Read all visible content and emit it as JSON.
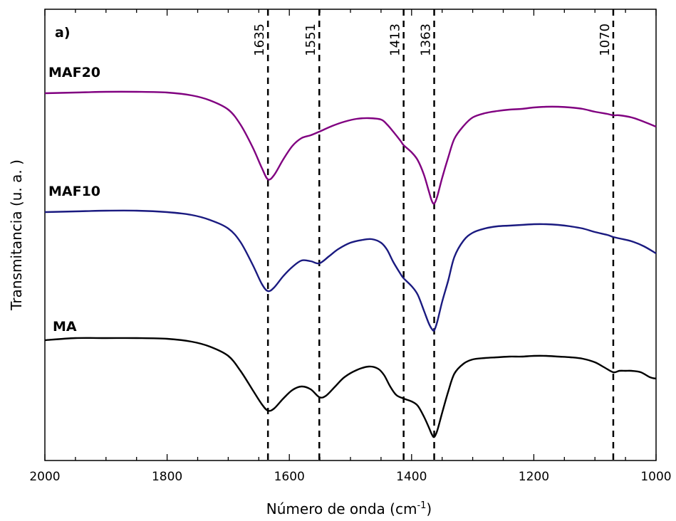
{
  "chart_data": {
    "type": "line",
    "panel_label": "a)",
    "xlabel_main": "Número de onda (cm",
    "xlabel_sup": "-1",
    "xlabel_close": ")",
    "ylabel": "Transmitancia (u. a. )",
    "xlim": [
      2000,
      1000
    ],
    "x_reversed": true,
    "y_ticks_visible": false,
    "x_ticks": [
      2000,
      1800,
      1600,
      1400,
      1200,
      1000
    ],
    "x_tick_labels": [
      "2000",
      "1800",
      "1600",
      "1400",
      "1200",
      "1000"
    ],
    "grid": false,
    "legend": "none (series labeled inline)",
    "peak_markers": [
      {
        "x": 1635,
        "label": "1635"
      },
      {
        "x": 1551,
        "label": "1551"
      },
      {
        "x": 1413,
        "label": "1413"
      },
      {
        "x": 1363,
        "label": "1363"
      },
      {
        "x": 1070,
        "label": "1070"
      }
    ],
    "series": [
      {
        "name": "MAF20",
        "color": "#800080",
        "points": [
          [
            2000,
            131
          ],
          [
            1950,
            130
          ],
          [
            1900,
            129
          ],
          [
            1850,
            129
          ],
          [
            1800,
            130
          ],
          [
            1760,
            134
          ],
          [
            1730,
            141
          ],
          [
            1700,
            154
          ],
          [
            1680,
            175
          ],
          [
            1660,
            207
          ],
          [
            1645,
            236
          ],
          [
            1635,
            252
          ],
          [
            1625,
            246
          ],
          [
            1610,
            224
          ],
          [
            1595,
            205
          ],
          [
            1580,
            194
          ],
          [
            1565,
            190
          ],
          [
            1551,
            185
          ],
          [
            1530,
            177
          ],
          [
            1510,
            171
          ],
          [
            1490,
            167
          ],
          [
            1470,
            166
          ],
          [
            1450,
            168
          ],
          [
            1440,
            175
          ],
          [
            1430,
            185
          ],
          [
            1418,
            198
          ],
          [
            1413,
            204
          ],
          [
            1400,
            214
          ],
          [
            1390,
            225
          ],
          [
            1380,
            245
          ],
          [
            1372,
            268
          ],
          [
            1367,
            282
          ],
          [
            1363,
            286
          ],
          [
            1358,
            276
          ],
          [
            1350,
            250
          ],
          [
            1340,
            221
          ],
          [
            1330,
            195
          ],
          [
            1315,
            177
          ],
          [
            1300,
            165
          ],
          [
            1280,
            159
          ],
          [
            1260,
            156
          ],
          [
            1240,
            154
          ],
          [
            1220,
            153
          ],
          [
            1200,
            151
          ],
          [
            1180,
            150
          ],
          [
            1160,
            150
          ],
          [
            1140,
            151
          ],
          [
            1120,
            153
          ],
          [
            1100,
            157
          ],
          [
            1080,
            160
          ],
          [
            1070,
            162
          ],
          [
            1060,
            162
          ],
          [
            1040,
            165
          ],
          [
            1020,
            171
          ],
          [
            1000,
            178
          ]
        ]
      },
      {
        "name": "MAF10",
        "color": "#1a1a80",
        "points": [
          [
            2000,
            298
          ],
          [
            1950,
            297
          ],
          [
            1900,
            296
          ],
          [
            1850,
            296
          ],
          [
            1800,
            298
          ],
          [
            1760,
            302
          ],
          [
            1730,
            309
          ],
          [
            1700,
            321
          ],
          [
            1680,
            340
          ],
          [
            1660,
            372
          ],
          [
            1645,
            399
          ],
          [
            1635,
            409
          ],
          [
            1625,
            404
          ],
          [
            1610,
            388
          ],
          [
            1595,
            375
          ],
          [
            1580,
            366
          ],
          [
            1565,
            367
          ],
          [
            1551,
            370
          ],
          [
            1535,
            360
          ],
          [
            1520,
            350
          ],
          [
            1500,
            341
          ],
          [
            1480,
            337
          ],
          [
            1465,
            336
          ],
          [
            1450,
            341
          ],
          [
            1440,
            351
          ],
          [
            1430,
            368
          ],
          [
            1418,
            385
          ],
          [
            1413,
            391
          ],
          [
            1400,
            402
          ],
          [
            1390,
            414
          ],
          [
            1380,
            436
          ],
          [
            1372,
            454
          ],
          [
            1367,
            462
          ],
          [
            1363,
            464
          ],
          [
            1358,
            452
          ],
          [
            1350,
            424
          ],
          [
            1340,
            394
          ],
          [
            1330,
            361
          ],
          [
            1315,
            338
          ],
          [
            1300,
            327
          ],
          [
            1280,
            321
          ],
          [
            1260,
            318
          ],
          [
            1240,
            317
          ],
          [
            1220,
            316
          ],
          [
            1200,
            315
          ],
          [
            1180,
            315
          ],
          [
            1160,
            316
          ],
          [
            1140,
            318
          ],
          [
            1120,
            321
          ],
          [
            1100,
            326
          ],
          [
            1080,
            330
          ],
          [
            1070,
            333
          ],
          [
            1060,
            335
          ],
          [
            1040,
            339
          ],
          [
            1020,
            346
          ],
          [
            1000,
            356
          ]
        ]
      },
      {
        "name": "MA",
        "color": "#000000",
        "points": [
          [
            2000,
            478
          ],
          [
            1950,
            475
          ],
          [
            1900,
            475
          ],
          [
            1850,
            475
          ],
          [
            1800,
            476
          ],
          [
            1760,
            480
          ],
          [
            1730,
            487
          ],
          [
            1700,
            500
          ],
          [
            1680,
            521
          ],
          [
            1660,
            548
          ],
          [
            1645,
            568
          ],
          [
            1635,
            577
          ],
          [
            1625,
            574
          ],
          [
            1610,
            560
          ],
          [
            1595,
            548
          ],
          [
            1580,
            543
          ],
          [
            1565,
            547
          ],
          [
            1551,
            558
          ],
          [
            1540,
            556
          ],
          [
            1525,
            543
          ],
          [
            1510,
            530
          ],
          [
            1490,
            520
          ],
          [
            1470,
            515
          ],
          [
            1455,
            518
          ],
          [
            1445,
            527
          ],
          [
            1435,
            543
          ],
          [
            1425,
            555
          ],
          [
            1413,
            560
          ],
          [
            1400,
            564
          ],
          [
            1390,
            570
          ],
          [
            1380,
            585
          ],
          [
            1372,
            600
          ],
          [
            1367,
            610
          ],
          [
            1363,
            614
          ],
          [
            1358,
            605
          ],
          [
            1350,
            580
          ],
          [
            1340,
            550
          ],
          [
            1330,
            525
          ],
          [
            1315,
            511
          ],
          [
            1300,
            505
          ],
          [
            1280,
            503
          ],
          [
            1260,
            502
          ],
          [
            1240,
            501
          ],
          [
            1220,
            501
          ],
          [
            1200,
            500
          ],
          [
            1180,
            500
          ],
          [
            1160,
            501
          ],
          [
            1140,
            502
          ],
          [
            1120,
            504
          ],
          [
            1100,
            509
          ],
          [
            1085,
            516
          ],
          [
            1070,
            523
          ],
          [
            1060,
            521
          ],
          [
            1050,
            521
          ],
          [
            1040,
            521
          ],
          [
            1025,
            523
          ],
          [
            1010,
            530
          ],
          [
            1000,
            532
          ]
        ]
      }
    ]
  }
}
